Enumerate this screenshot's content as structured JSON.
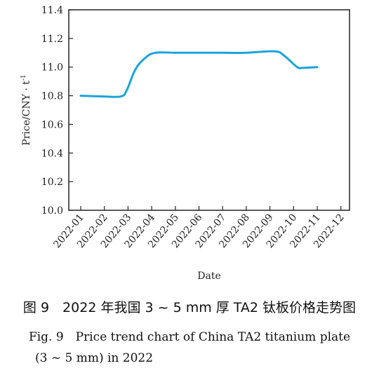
{
  "chart_data": {
    "type": "line",
    "title": "",
    "xlabel": "Date",
    "ylabel": "Price/CNY · t",
    "ylabel_exponent": "-1",
    "categories": [
      "2022-01",
      "2022-02",
      "2022-03",
      "2022-04",
      "2022-05",
      "2022-06",
      "2022-07",
      "2022-08",
      "2022-09",
      "2022-10",
      "2022-11",
      "2022-12"
    ],
    "y_ticks": [
      "10.0",
      "10.2",
      "10.4",
      "10.6",
      "10.8",
      "11.0",
      "11.2",
      "11.4"
    ],
    "ylim": [
      10.0,
      11.4
    ],
    "grid": false,
    "legend": "none",
    "line_color": "#1ba3dc",
    "series": [
      {
        "points": [
          [
            "2022-01",
            10.8
          ],
          [
            "2022-02",
            10.795
          ],
          [
            "2022-03",
            10.795
          ],
          [
            "2022-03",
            10.84
          ],
          [
            "2022-04",
            10.98
          ],
          [
            "2022-04",
            11.06
          ],
          [
            "2022-05",
            11.1
          ],
          [
            "2022-06",
            11.1
          ],
          [
            "2022-07",
            11.1
          ],
          [
            "2022-08",
            11.1
          ],
          [
            "2022-09",
            11.1
          ],
          [
            "2022-10",
            11.11
          ],
          [
            "2022-10",
            11.08
          ],
          [
            "2022-11",
            11.0
          ],
          [
            "2022-11",
            10.995
          ],
          [
            "2022-12",
            11.0
          ]
        ],
        "x_positions": [
          0,
          0.95,
          1.7,
          1.95,
          2.3,
          2.7,
          3.15,
          4.0,
          5.0,
          6.0,
          7.0,
          8.2,
          8.6,
          9.15,
          9.4,
          10.0
        ]
      }
    ]
  },
  "caption": {
    "cn": "图 9　2022 年我国 3 ~ 5 mm 厚 TA2 钛板价格走势图",
    "en_line1": "Fig. 9　Price trend chart of China TA2 titanium plate",
    "en_line2": "(3 ~ 5 mm) in 2022"
  }
}
